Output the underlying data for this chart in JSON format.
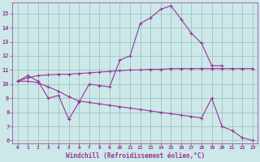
{
  "bg_color": "#cce8e8",
  "line_color": "#993399",
  "grid_color": "#99bbbb",
  "xlabel": "Windchill (Refroidissement éolien,°C)",
  "xlabel_color": "#993399",
  "xlim": [
    -0.5,
    23.5
  ],
  "ylim": [
    5.8,
    15.8
  ],
  "yticks": [
    6,
    7,
    8,
    9,
    10,
    11,
    12,
    13,
    14,
    15
  ],
  "xticks": [
    0,
    1,
    2,
    3,
    4,
    5,
    6,
    7,
    8,
    9,
    10,
    11,
    12,
    13,
    14,
    15,
    16,
    17,
    18,
    19,
    20,
    21,
    22,
    23
  ],
  "series": [
    {
      "x": [
        0,
        1,
        2,
        3,
        4,
        5,
        6,
        7,
        8,
        9,
        10,
        11,
        12,
        13,
        14,
        15,
        16,
        17,
        18,
        19,
        20
      ],
      "y": [
        10.2,
        10.6,
        10.2,
        9.0,
        9.2,
        7.5,
        8.7,
        10.0,
        9.9,
        9.8,
        11.7,
        12.0,
        14.3,
        14.7,
        15.3,
        15.55,
        14.6,
        13.6,
        12.9,
        11.3,
        11.3
      ]
    },
    {
      "x": [
        0,
        1,
        2,
        3,
        4,
        5,
        6,
        7,
        8,
        9,
        10,
        11,
        12,
        13,
        14,
        15,
        16,
        17,
        18,
        19,
        20,
        21,
        22,
        23
      ],
      "y": [
        10.2,
        10.45,
        10.6,
        10.65,
        10.7,
        10.7,
        10.75,
        10.8,
        10.85,
        10.9,
        10.95,
        11.0,
        11.0,
        11.05,
        11.05,
        11.1,
        11.1,
        11.1,
        11.1,
        11.1,
        11.1,
        11.1,
        11.1,
        11.1
      ]
    },
    {
      "x": [
        0,
        1,
        2,
        3,
        4,
        5,
        6,
        7,
        8,
        9,
        10,
        11,
        12,
        13,
        14,
        15,
        16,
        17,
        18,
        19,
        20,
        21,
        22,
        23
      ],
      "y": [
        10.2,
        10.2,
        10.1,
        9.8,
        9.5,
        9.1,
        8.8,
        8.7,
        8.6,
        8.5,
        8.4,
        8.3,
        8.2,
        8.1,
        8.0,
        7.9,
        7.8,
        7.7,
        7.6,
        9.0,
        7.0,
        6.7,
        6.2,
        6.0
      ]
    }
  ]
}
